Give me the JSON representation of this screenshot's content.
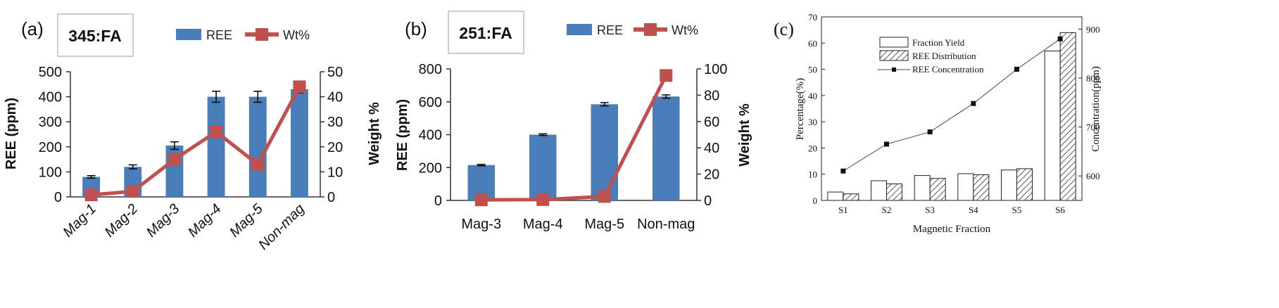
{
  "colors": {
    "bar_blue": "#4a7ebb",
    "line_red": "#c0504d",
    "axis": "#333333",
    "black": "#111111"
  },
  "chart_data": [
    {
      "panel_label": "(a)",
      "type": "bar",
      "title": "345:FA",
      "categories": [
        "Mag-1",
        "Mag-2",
        "Mag-3",
        "Mag-4",
        "Mag-5",
        "Non-mag"
      ],
      "series": [
        {
          "name": "REE",
          "kind": "bar",
          "axis": "left",
          "values": [
            80,
            120,
            205,
            400,
            400,
            430
          ],
          "errors": [
            5,
            8,
            15,
            22,
            22,
            15
          ]
        },
        {
          "name": "Wt%",
          "kind": "line",
          "axis": "right",
          "values": [
            0.8,
            2.2,
            15,
            26,
            13,
            44
          ]
        }
      ],
      "ylabel": "REE (ppm)",
      "ylabel_right": "Weight %",
      "ylim": [
        0,
        500
      ],
      "ylim_right": [
        0,
        50
      ],
      "yticks": [
        "0",
        "100",
        "200",
        "300",
        "400",
        "500"
      ],
      "yticks_right": [
        "0",
        "10",
        "20",
        "30",
        "40",
        "50"
      ],
      "grid": false,
      "legend": "top"
    },
    {
      "panel_label": "(b)",
      "type": "bar",
      "title": "251:FA",
      "categories": [
        "Mag-3",
        "Mag-4",
        "Mag-5",
        "Non-mag"
      ],
      "series": [
        {
          "name": "REE",
          "kind": "bar",
          "axis": "left",
          "values": [
            215,
            400,
            585,
            632
          ],
          "errors": [
            4,
            5,
            10,
            10
          ]
        },
        {
          "name": "Wt%",
          "kind": "line",
          "axis": "right",
          "values": [
            0.4,
            0.6,
            3,
            95
          ]
        }
      ],
      "ylabel": "REE (ppm)",
      "ylabel_right": "Weight %",
      "ylim": [
        0,
        800
      ],
      "ylim_right": [
        0,
        100
      ],
      "yticks": [
        "0",
        "200",
        "400",
        "600",
        "800"
      ],
      "yticks_right": [
        "0",
        "20",
        "40",
        "60",
        "80",
        "100"
      ],
      "grid": false,
      "legend": "top"
    },
    {
      "panel_label": "(c)",
      "type": "bar",
      "categories": [
        "S1",
        "S2",
        "S3",
        "S4",
        "S5",
        "S6"
      ],
      "series": [
        {
          "name": "Fraction Yield",
          "kind": "bar",
          "axis": "left",
          "values": [
            3.2,
            7.5,
            9.5,
            10.2,
            11.6,
            57
          ]
        },
        {
          "name": "REE Distribution",
          "kind": "bar-hatched",
          "axis": "left",
          "values": [
            2.5,
            6.3,
            8.4,
            9.8,
            12.1,
            64
          ]
        },
        {
          "name": "REE Concentration",
          "kind": "line",
          "axis": "right",
          "values": [
            610,
            665,
            690,
            748,
            818,
            880
          ]
        }
      ],
      "xlabel": "Magnetic Fraction",
      "ylabel": "Percentage(%)",
      "ylabel_right": "Concentration(ppm)",
      "ylim": [
        0,
        70
      ],
      "ylim_right": [
        550,
        925
      ],
      "yticks": [
        "0",
        "10",
        "20",
        "30",
        "40",
        "50",
        "60",
        "70"
      ],
      "yticks_right": [
        "600",
        "700",
        "800",
        "900"
      ],
      "grid": false,
      "legend": "top-left"
    }
  ]
}
